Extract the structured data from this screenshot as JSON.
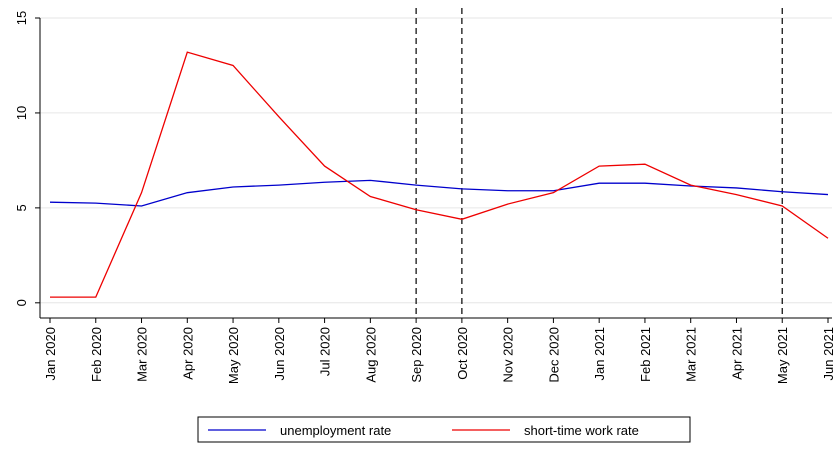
{
  "chart_data": {
    "type": "line",
    "categories": [
      "Jan 2020",
      "Feb 2020",
      "Mar 2020",
      "Apr 2020",
      "May 2020",
      "Jun 2020",
      "Jul 2020",
      "Aug 2020",
      "Sep 2020",
      "Oct 2020",
      "Nov 2020",
      "Dec 2020",
      "Jan 2021",
      "Feb 2021",
      "Mar 2021",
      "Apr 2021",
      "May 2021",
      "Jun 2021"
    ],
    "series": [
      {
        "name": "unemployment rate",
        "color": "#0000cc",
        "values": [
          5.3,
          5.25,
          5.1,
          5.8,
          6.1,
          6.2,
          6.35,
          6.45,
          6.2,
          6.0,
          5.9,
          5.9,
          6.3,
          6.3,
          6.15,
          6.05,
          5.85,
          5.7
        ]
      },
      {
        "name": "short-time work rate",
        "color": "#ee0000",
        "values": [
          0.3,
          0.3,
          5.8,
          13.2,
          12.5,
          9.8,
          7.2,
          5.6,
          4.9,
          4.4,
          5.2,
          5.8,
          7.2,
          7.3,
          6.2,
          5.7,
          5.1,
          3.4
        ]
      }
    ],
    "ylim": [
      -0.8,
      15
    ],
    "yticks": [
      0,
      5,
      10,
      15
    ],
    "grid": true,
    "vlines": [
      8,
      9,
      16
    ],
    "legend": "bottom"
  }
}
